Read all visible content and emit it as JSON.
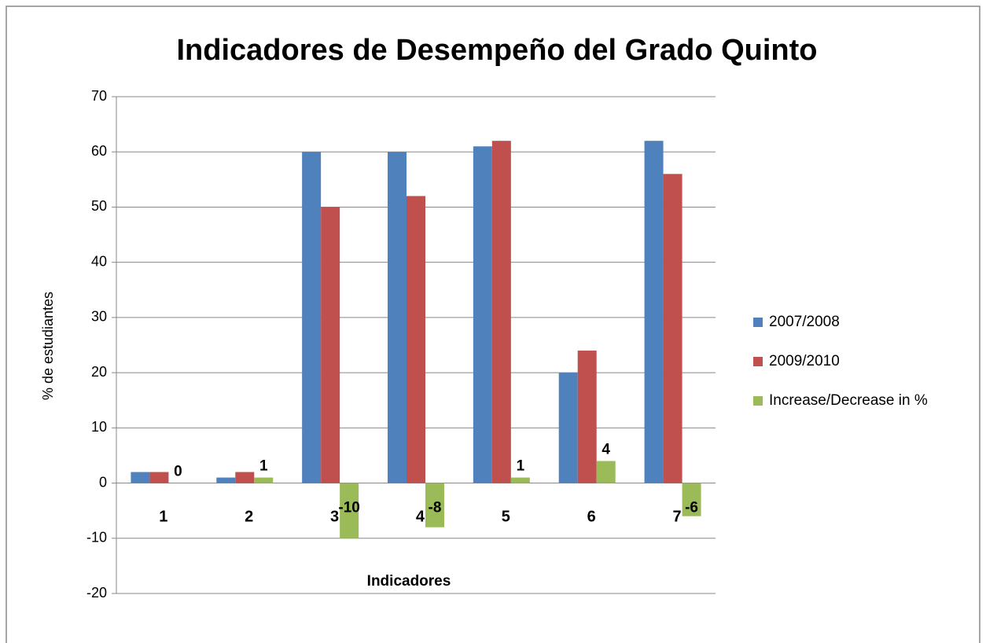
{
  "chart_data": {
    "type": "bar",
    "title": "Indicadores de Desempeño del Grado Quinto",
    "x_label": "Indicadores",
    "y_label": "% de estudiantes",
    "categories": [
      "1",
      "2",
      "3",
      "4",
      "5",
      "6",
      "7"
    ],
    "series": [
      {
        "name": "2007/2008",
        "color": "#4f81bd",
        "values": [
          2,
          1,
          60,
          60,
          61,
          20,
          62
        ]
      },
      {
        "name": "2009/2010",
        "color": "#c0504d",
        "values": [
          2,
          2,
          50,
          52,
          62,
          24,
          56
        ]
      },
      {
        "name": "Increase/Decrease in %",
        "color": "#9bbb59",
        "values": [
          0,
          1,
          -10,
          -8,
          1,
          4,
          -6
        ],
        "data_labels": true
      }
    ],
    "ylim": [
      -20,
      70
    ],
    "yticks": [
      -20,
      -10,
      0,
      10,
      20,
      30,
      40,
      50,
      60,
      70
    ],
    "grid": true,
    "legend": "right"
  }
}
